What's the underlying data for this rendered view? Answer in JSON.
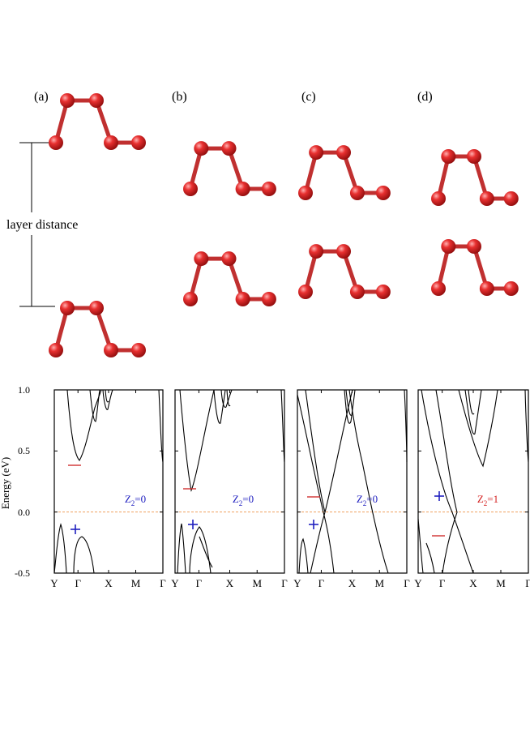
{
  "structures": {
    "panels": [
      {
        "label": "(a)",
        "annotation": "layer distance"
      },
      {
        "label": "(b)"
      },
      {
        "label": "(c)"
      },
      {
        "label": "(d)"
      }
    ],
    "atom_color": "#d42020",
    "bond_color": "#c03030"
  },
  "bands": {
    "ylabel": "Energy (eV)",
    "y_ticks": [
      "1.0",
      "0.5",
      "0.0",
      "-0.5"
    ],
    "k_labels": [
      "Y",
      "Γ",
      "X",
      "M",
      "Γ"
    ],
    "fermi_color": "#f0a060",
    "plus_color": "#2020c0",
    "minus_color": "#d03030",
    "panels": [
      {
        "z2": "0",
        "z2_color": "#2020c0"
      },
      {
        "z2": "0",
        "z2_color": "#2020c0"
      },
      {
        "z2": "0",
        "z2_color": "#2020c0"
      },
      {
        "z2": "1",
        "z2_color": "#d42020"
      }
    ]
  },
  "chart_data": [
    {
      "type": "line",
      "xlabel": "",
      "ylabel": "Energy (eV)",
      "ylim": [
        -0.5,
        1.0
      ],
      "x": [
        "Y",
        "Γ",
        "X",
        "M",
        "Γ"
      ],
      "annotations": [
        "Z2=0",
        "+ near Γ at -0.13 eV",
        "− near Γ at 0.39 eV"
      ]
    },
    {
      "type": "line",
      "xlabel": "",
      "ylabel": "",
      "ylim": [
        -0.5,
        1.0
      ],
      "x": [
        "Y",
        "Γ",
        "X",
        "M",
        "Γ"
      ],
      "annotations": [
        "Z2=0",
        "+ near Γ at -0.10 eV",
        "− near Γ at 0.20 eV"
      ]
    },
    {
      "type": "line",
      "xlabel": "",
      "ylabel": "",
      "ylim": [
        -0.5,
        1.0
      ],
      "x": [
        "Y",
        "Γ",
        "X",
        "M",
        "Γ"
      ],
      "annotations": [
        "Z2=0",
        "+ near Γ at -0.10 eV",
        "− near Γ at 0.12 eV"
      ]
    },
    {
      "type": "line",
      "xlabel": "",
      "ylabel": "",
      "ylim": [
        -0.5,
        1.0
      ],
      "x": [
        "Y",
        "Γ",
        "X",
        "M",
        "Γ"
      ],
      "annotations": [
        "Z2=1",
        "+ near Γ at 0.13 eV",
        "− near Γ at -0.20 eV"
      ]
    }
  ]
}
